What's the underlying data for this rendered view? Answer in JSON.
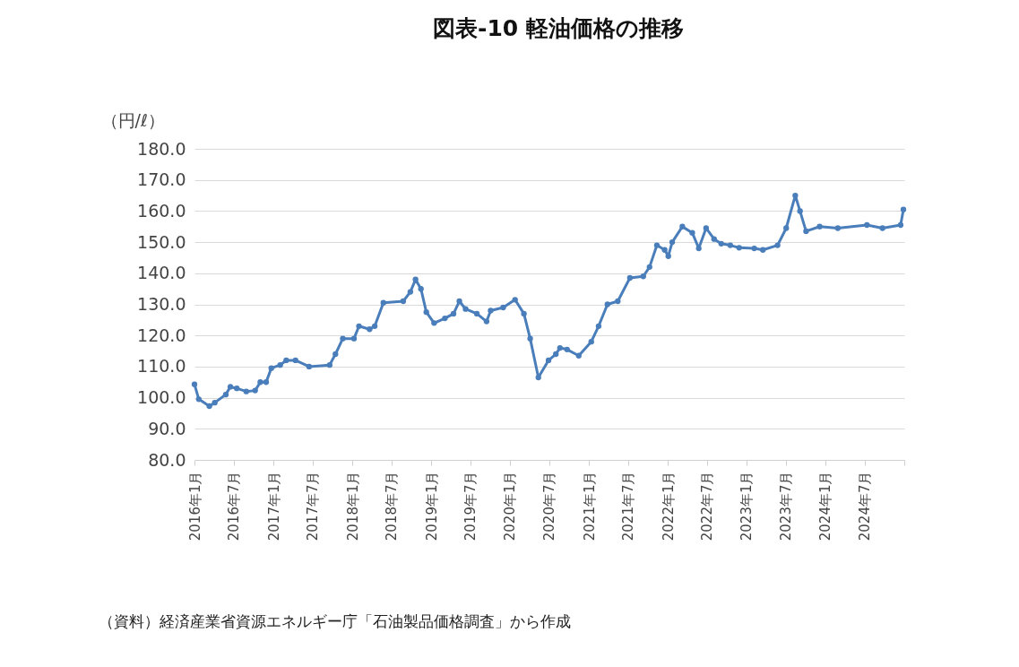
{
  "chart_data": {
    "type": "line",
    "title": "図表-10 軽油価格の推移",
    "ylabel": "（円/ℓ）",
    "annotations": [
      "（資料）経済産業省資源エネルギー庁「石油製品価格調査」から作成"
    ],
    "x": [
      "2016-01-01",
      "2016-01-21",
      "2016-03-10",
      "2016-04-04",
      "2016-05-25",
      "2016-06-15",
      "2016-07-15",
      "2016-08-28",
      "2016-10-08",
      "2016-11-01",
      "2016-11-28",
      "2016-12-22",
      "2017-02-01",
      "2017-03-01",
      "2017-04-13",
      "2017-06-15",
      "2017-09-18",
      "2017-10-15",
      "2017-11-18",
      "2018-01-09",
      "2018-02-01",
      "2018-03-22",
      "2018-04-15",
      "2018-05-25",
      "2018-08-25",
      "2018-09-27",
      "2018-10-21",
      "2018-11-15",
      "2018-12-10",
      "2019-01-15",
      "2019-03-06",
      "2019-04-15",
      "2019-05-12",
      "2019-06-10",
      "2019-08-01",
      "2019-09-15",
      "2019-10-04",
      "2019-12-01",
      "2020-01-25",
      "2020-03-06",
      "2020-04-04",
      "2020-05-12",
      "2020-06-28",
      "2020-08-01",
      "2020-08-20",
      "2020-09-22",
      "2020-11-15",
      "2021-01-12",
      "2021-02-15",
      "2021-03-28",
      "2021-05-15",
      "2021-07-10",
      "2021-09-10",
      "2021-10-09",
      "2021-11-12",
      "2021-12-18",
      "2022-01-04",
      "2022-01-22",
      "2022-03-10",
      "2022-04-25",
      "2022-05-25",
      "2022-06-28",
      "2022-08-04",
      "2022-09-06",
      "2022-10-18",
      "2022-11-28",
      "2023-02-06",
      "2023-03-18",
      "2023-05-25",
      "2023-07-04",
      "2023-08-15",
      "2023-09-06",
      "2023-10-04",
      "2023-12-06",
      "2024-02-28",
      "2024-07-12",
      "2024-09-22",
      "2024-12-15",
      "2024-12-28"
    ],
    "series": [
      {
        "color": "#4a7ebb",
        "values": [
          104.3,
          99.5,
          97.3,
          98.4,
          101,
          103.5,
          103,
          102,
          102.3,
          105,
          105,
          109.5,
          110.5,
          112,
          112,
          110,
          110.5,
          114,
          119,
          119,
          123,
          122,
          123,
          130.5,
          131,
          134,
          138,
          135,
          127.5,
          124,
          125.5,
          127,
          131,
          128.5,
          127,
          124.5,
          128,
          129,
          131.5,
          127,
          119,
          106.5,
          112,
          114,
          116,
          115.5,
          113.5,
          118,
          123,
          130,
          131,
          138.5,
          139,
          142,
          149,
          147.5,
          145.5,
          150,
          155,
          153,
          148,
          154.5,
          151,
          149.5,
          149,
          148.2,
          148,
          147.5,
          149,
          154.5,
          165,
          160,
          153.5,
          155,
          154.5,
          155.5,
          154.5,
          155.5,
          160.5
        ]
      }
    ],
    "xlim": [
      "2016-01-01",
      "2025-01-01"
    ],
    "xticks": [
      {
        "value": "2016-01",
        "label": "2016年1月"
      },
      {
        "value": "2016-07",
        "label": "2016年7月"
      },
      {
        "value": "2017-01",
        "label": "2017年1月"
      },
      {
        "value": "2017-07",
        "label": "2017年7月"
      },
      {
        "value": "2018-01",
        "label": "2018年1月"
      },
      {
        "value": "2018-07",
        "label": "2018年7月"
      },
      {
        "value": "2019-01",
        "label": "2019年1月"
      },
      {
        "value": "2019-07",
        "label": "2019年7月"
      },
      {
        "value": "2020-01",
        "label": "2020年1月"
      },
      {
        "value": "2020-07",
        "label": "2020年7月"
      },
      {
        "value": "2021-01",
        "label": "2021年1月"
      },
      {
        "value": "2021-07",
        "label": "2021年7月"
      },
      {
        "value": "2022-01",
        "label": "2022年1月"
      },
      {
        "value": "2022-07",
        "label": "2022年7月"
      },
      {
        "value": "2023-01",
        "label": "2023年1月"
      },
      {
        "value": "2023-07",
        "label": "2023年7月"
      },
      {
        "value": "2024-01",
        "label": "2024年1月"
      },
      {
        "value": "2024-07",
        "label": "2024年7月"
      },
      {
        "value": "2025-01",
        "label": null
      }
    ],
    "ylim": [
      80,
      180
    ],
    "yticks": [
      {
        "value": 80,
        "label": "80.0"
      },
      {
        "value": 90,
        "label": "90.0"
      },
      {
        "value": 100,
        "label": "100.0"
      },
      {
        "value": 110,
        "label": "110.0"
      },
      {
        "value": 120,
        "label": "120.0"
      },
      {
        "value": 130,
        "label": "130.0"
      },
      {
        "value": 140,
        "label": "140.0"
      },
      {
        "value": 150,
        "label": "150.0"
      },
      {
        "value": 160,
        "label": "160.0"
      },
      {
        "value": 170,
        "label": "170.0"
      },
      {
        "value": 180,
        "label": "180.0"
      }
    ],
    "grid": "y",
    "marker": "circle",
    "line_style": "solid"
  }
}
